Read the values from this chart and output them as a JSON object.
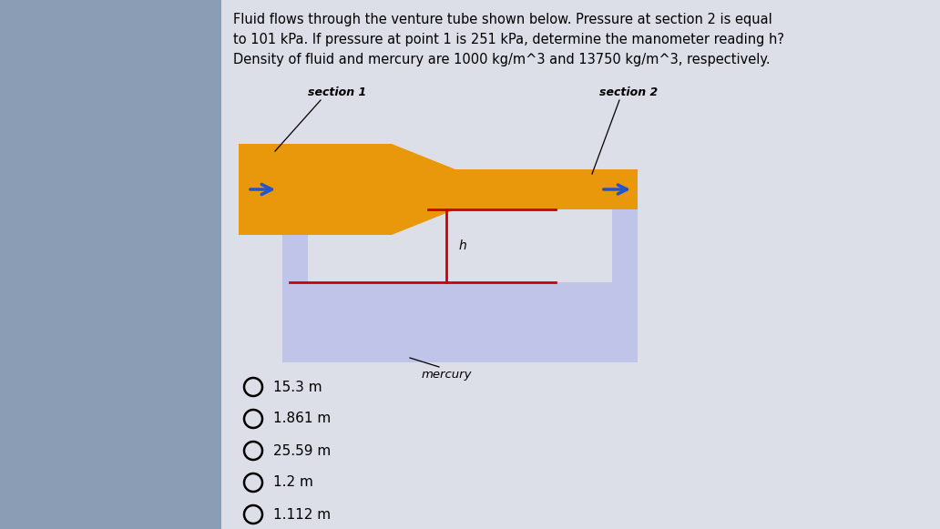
{
  "bg_color": "#8a9db5",
  "panel_color": "#dcdfe8",
  "tube_color": "#e8980a",
  "mercury_color": "#c0c4e8",
  "red_color": "#cc0000",
  "arrow_color": "#2255cc",
  "title_text": "Fluid flows through the venture tube shown below. Pressure at section 2 is equal\nto 101 kPa. If pressure at point 1 is 251 kPa, determine the manometer reading h?\nDensity of fluid and mercury are 1000 kg/m^3 and 13750 kg/m^3, respectively.",
  "section1_label": "section 1",
  "section2_label": "section 2",
  "mercury_label": "mercury",
  "h_label": "h",
  "options": [
    "15.3 m",
    "1.861 m",
    "25.59 m",
    "1.2 m",
    "1.112 m"
  ],
  "fig_w": 10.32,
  "fig_h": 5.81,
  "dpi": 100
}
